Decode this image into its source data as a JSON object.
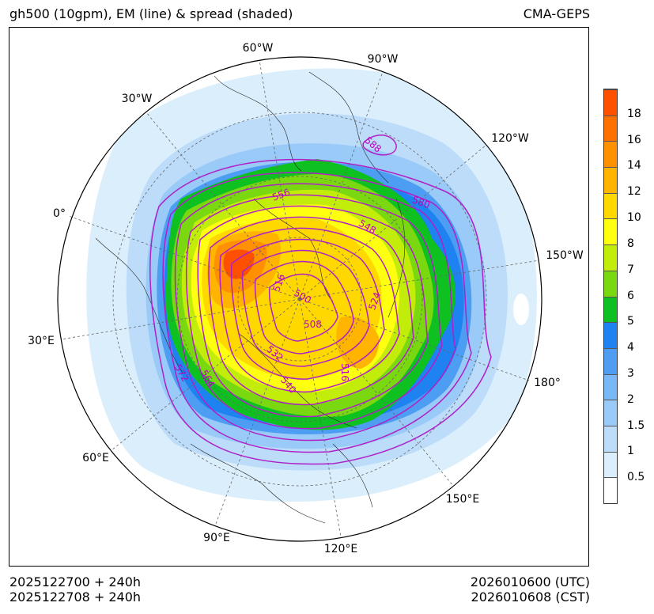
{
  "header": {
    "title": "gh500 (10gpm), EM (line) & spread (shaded)",
    "model": "CMA-GEPS"
  },
  "map": {
    "longitude_labels": [
      "60°W",
      "90°W",
      "30°W",
      "120°W",
      "0°",
      "150°W",
      "30°E",
      "180°",
      "60°E",
      "150°E",
      "90°E",
      "120°E"
    ],
    "contour_labels": [
      "588",
      "556",
      "580",
      "548",
      "516",
      "500",
      "524",
      "508",
      "532",
      "572",
      "564",
      "516",
      "540"
    ],
    "contour_color": "#b020c8"
  },
  "colorbar": {
    "ticks": [
      "0.5",
      "1",
      "1.5",
      "2",
      "3",
      "4",
      "5",
      "6",
      "7",
      "8",
      "10",
      "12",
      "14",
      "16",
      "18"
    ],
    "colors": [
      "#ffffff",
      "#dbeefc",
      "#bcdcfa",
      "#9acbf8",
      "#78b8f6",
      "#4d9ef2",
      "#1e82f0",
      "#0ec020",
      "#7ad810",
      "#c2ec0a",
      "#ffff10",
      "#ffd800",
      "#ffb400",
      "#ff9000",
      "#ff7000",
      "#ff5000"
    ]
  },
  "footer": {
    "init_utc": "2025122700 + 240h",
    "init_cst": "2025122708 + 240h",
    "valid_utc": "2026010600 (UTC)",
    "valid_cst": "2026010608 (CST)"
  }
}
